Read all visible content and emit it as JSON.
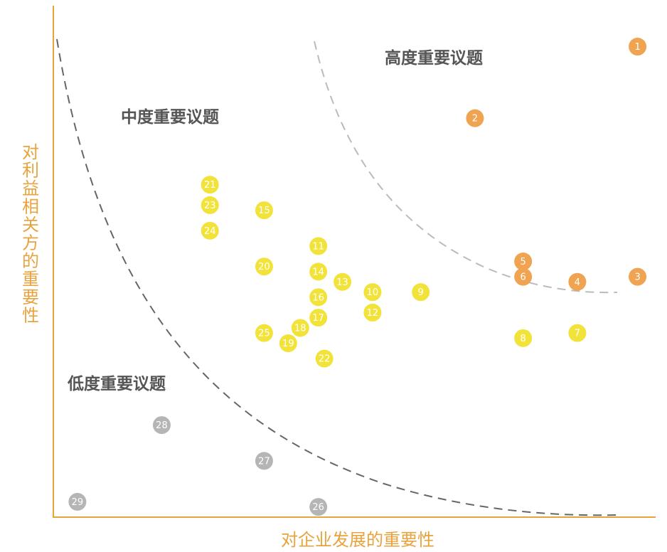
{
  "chart_data": {
    "type": "scatter",
    "title": "",
    "xlabel": "对企业发展的重要性",
    "ylabel": "对利益相关方的重要性",
    "axis_color": "#E8A33D",
    "grid": false,
    "zones": [
      {
        "name": "高度重要议题",
        "color": "#F0A350"
      },
      {
        "name": "中度重要议题",
        "color": "#F2E33A"
      },
      {
        "name": "低度重要议题",
        "color": "#B5B5B5"
      }
    ],
    "points": [
      {
        "label": "1",
        "zone": 0,
        "x": 0.97,
        "y": 0.92
      },
      {
        "label": "2",
        "zone": 0,
        "x": 0.7,
        "y": 0.78
      },
      {
        "label": "3",
        "zone": 0,
        "x": 0.97,
        "y": 0.47
      },
      {
        "label": "4",
        "zone": 0,
        "x": 0.87,
        "y": 0.46
      },
      {
        "label": "5",
        "zone": 0,
        "x": 0.78,
        "y": 0.5
      },
      {
        "label": "6",
        "zone": 0,
        "x": 0.78,
        "y": 0.47
      },
      {
        "label": "7",
        "zone": 1,
        "x": 0.87,
        "y": 0.36
      },
      {
        "label": "8",
        "zone": 1,
        "x": 0.78,
        "y": 0.35
      },
      {
        "label": "9",
        "zone": 1,
        "x": 0.61,
        "y": 0.44
      },
      {
        "label": "10",
        "zone": 1,
        "x": 0.53,
        "y": 0.44
      },
      {
        "label": "11",
        "zone": 1,
        "x": 0.44,
        "y": 0.53
      },
      {
        "label": "12",
        "zone": 1,
        "x": 0.53,
        "y": 0.4
      },
      {
        "label": "13",
        "zone": 1,
        "x": 0.48,
        "y": 0.46
      },
      {
        "label": "14",
        "zone": 1,
        "x": 0.44,
        "y": 0.48
      },
      {
        "label": "15",
        "zone": 1,
        "x": 0.35,
        "y": 0.6
      },
      {
        "label": "16",
        "zone": 1,
        "x": 0.44,
        "y": 0.43
      },
      {
        "label": "17",
        "zone": 1,
        "x": 0.44,
        "y": 0.39
      },
      {
        "label": "18",
        "zone": 1,
        "x": 0.41,
        "y": 0.37
      },
      {
        "label": "19",
        "zone": 1,
        "x": 0.39,
        "y": 0.34
      },
      {
        "label": "20",
        "zone": 1,
        "x": 0.35,
        "y": 0.49
      },
      {
        "label": "21",
        "zone": 1,
        "x": 0.26,
        "y": 0.65
      },
      {
        "label": "22",
        "zone": 1,
        "x": 0.45,
        "y": 0.31
      },
      {
        "label": "23",
        "zone": 1,
        "x": 0.26,
        "y": 0.61
      },
      {
        "label": "24",
        "zone": 1,
        "x": 0.26,
        "y": 0.56
      },
      {
        "label": "25",
        "zone": 1,
        "x": 0.35,
        "y": 0.36
      },
      {
        "label": "26",
        "zone": 2,
        "x": 0.44,
        "y": 0.02
      },
      {
        "label": "27",
        "zone": 2,
        "x": 0.35,
        "y": 0.11
      },
      {
        "label": "28",
        "zone": 2,
        "x": 0.18,
        "y": 0.18
      },
      {
        "label": "29",
        "zone": 2,
        "x": 0.04,
        "y": 0.03
      }
    ],
    "xlim": [
      0,
      1
    ],
    "ylim": [
      0,
      1
    ]
  }
}
